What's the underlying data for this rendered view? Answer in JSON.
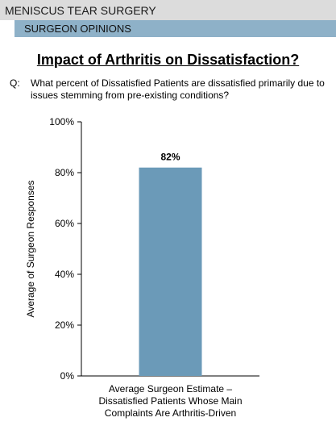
{
  "header": {
    "title": "MENISCUS TEAR SURGERY",
    "subtitle": "SURGEON OPINIONS"
  },
  "colors": {
    "header_bg": "#dcdcdc",
    "subheader_bg": "#8eb1c8",
    "bar_fill": "#6b9ab8"
  },
  "question": {
    "label": "Q:",
    "text": "What percent of Dissatisfied Patients are dissatisfied primarily due to issues stemming from pre-existing conditions?"
  },
  "chart_data": {
    "type": "bar",
    "title": "Impact of Arthritis on Dissatisfaction?",
    "ylabel": "Average of Surgeon Responses",
    "xlabel": "",
    "ylim": [
      0,
      100
    ],
    "yticks": [
      0,
      20,
      40,
      60,
      80,
      100
    ],
    "ytick_labels": [
      "0%",
      "20%",
      "40%",
      "60%",
      "80%",
      "100%"
    ],
    "categories": [
      "Average Surgeon Estimate – Dissatisfied Patients Whose Main Complaints Are Arthritis-Driven"
    ],
    "category_label_lines": [
      [
        "Average Surgeon Estimate –",
        "Dissatisfied Patients Whose Main",
        "Complaints Are Arthritis-Driven"
      ]
    ],
    "values": [
      82
    ],
    "data_labels": [
      "82%"
    ],
    "grid": false,
    "legend": "none"
  }
}
